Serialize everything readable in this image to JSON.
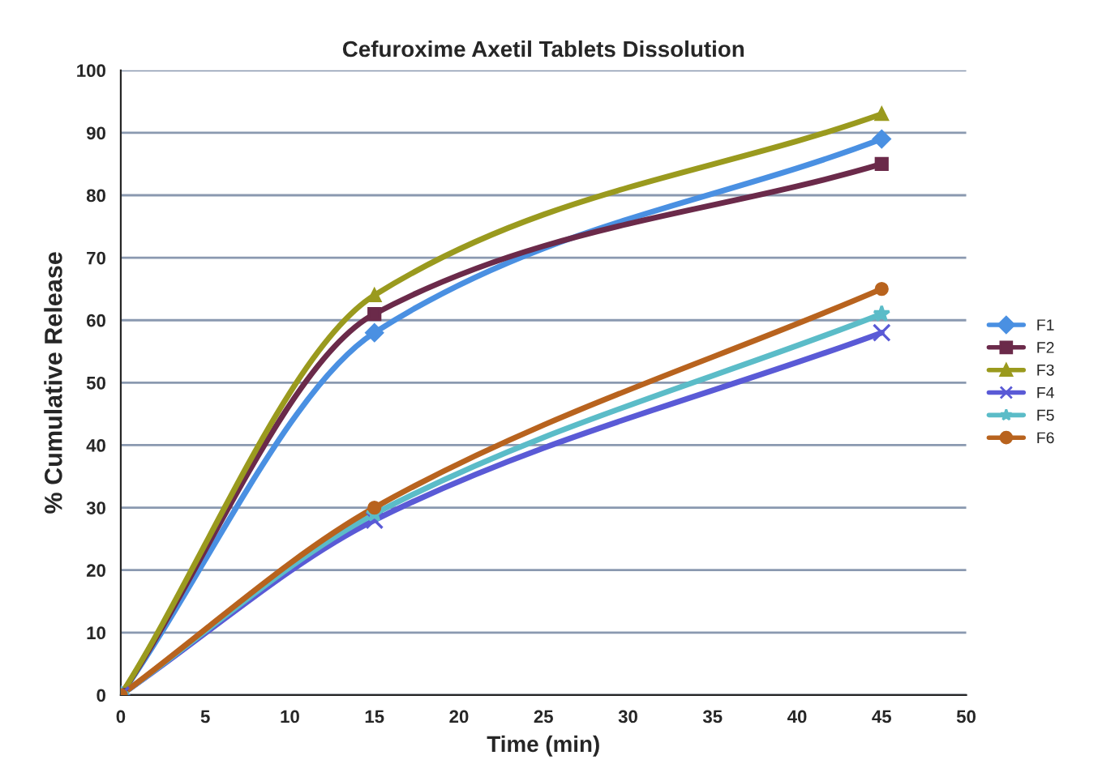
{
  "chart_data": {
    "type": "line",
    "title": "Cefuroxime Axetil Tablets Dissolution",
    "xlabel": "Time (min)",
    "ylabel": "% Cumulative Release",
    "x": [
      0,
      15,
      45
    ],
    "series": [
      {
        "name": "F1",
        "color": "#4a90e2",
        "marker": "diamond",
        "values": [
          0,
          58,
          89
        ]
      },
      {
        "name": "F2",
        "color": "#6b2a4a",
        "marker": "square",
        "values": [
          0,
          61,
          85
        ]
      },
      {
        "name": "F3",
        "color": "#9a9a1e",
        "marker": "triangle",
        "values": [
          0,
          64,
          93
        ]
      },
      {
        "name": "F4",
        "color": "#5a5ad6",
        "marker": "cross",
        "values": [
          0,
          28,
          58
        ]
      },
      {
        "name": "F5",
        "color": "#5bbcc8",
        "marker": "star",
        "values": [
          0,
          29,
          61
        ]
      },
      {
        "name": "F6",
        "color": "#b8631e",
        "marker": "circle",
        "values": [
          0,
          30,
          65
        ]
      }
    ],
    "xlim": [
      0,
      50
    ],
    "xticks": [
      0,
      5,
      10,
      15,
      20,
      25,
      30,
      35,
      40,
      45,
      50
    ],
    "ylim": [
      0,
      100
    ],
    "yticks": [
      0,
      10,
      20,
      30,
      40,
      50,
      60,
      70,
      80,
      90,
      100
    ],
    "grid": "y",
    "legend": "right",
    "line_style": "solid"
  }
}
